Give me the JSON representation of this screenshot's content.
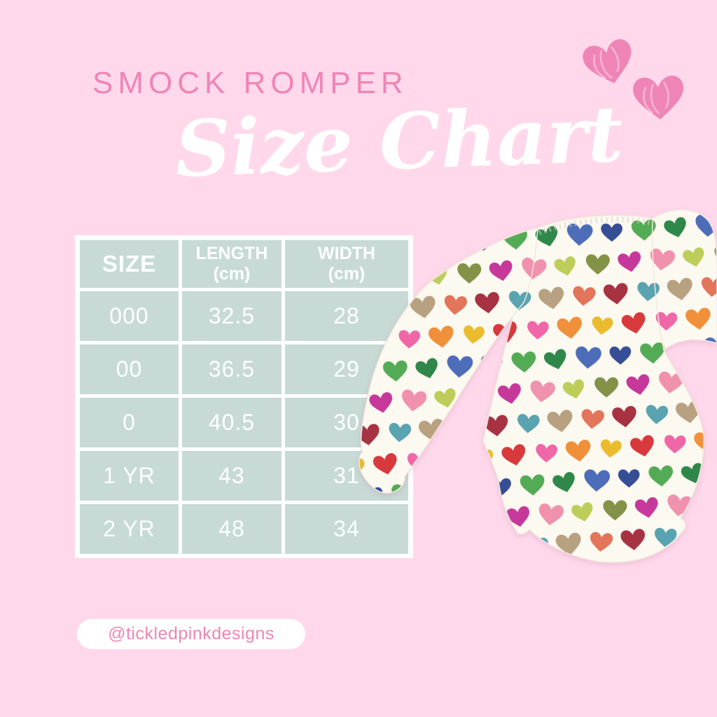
{
  "colors": {
    "background": "#ffd9eb",
    "accent_pink": "#ef85b6",
    "table_cell_teal": "#c7dad6",
    "table_text": "#ffffff",
    "fabric_base": "#fcf9f1"
  },
  "header": {
    "title": "SMOCK ROMPER",
    "subtitle": "Size Chart"
  },
  "decor": {
    "icons": [
      "heart-icon",
      "heart-icon"
    ]
  },
  "size_table": {
    "columns": [
      {
        "label": "SIZE",
        "unit": ""
      },
      {
        "label": "LENGTH",
        "unit": "(cm)"
      },
      {
        "label": "WIDTH",
        "unit": "(cm)"
      }
    ],
    "rows": [
      [
        "000",
        "32.5",
        "28"
      ],
      [
        "00",
        "36.5",
        "29"
      ],
      [
        "0",
        "40.5",
        "30"
      ],
      [
        "1 YR",
        "43",
        "31"
      ],
      [
        "2 YR",
        "48",
        "34"
      ]
    ]
  },
  "footer": {
    "handle": "@tickledpinkdesigns"
  },
  "romper": {
    "base": "#fcf9f1",
    "palette": [
      "#d42a2f",
      "#ef5ba1",
      "#f0872c",
      "#e8b71e",
      "#47a549",
      "#1f7f3c",
      "#3f62b5",
      "#27408f",
      "#c22a93",
      "#ef8aa8",
      "#b9c94e",
      "#7a8a3a",
      "#4d9cab",
      "#b39a78",
      "#e06a4f",
      "#a02335"
    ]
  },
  "chart_data": {
    "type": "table",
    "title": "SMOCK ROMPER Size Chart",
    "columns": [
      "SIZE",
      "LENGTH (cm)",
      "WIDTH (cm)"
    ],
    "rows": [
      [
        "000",
        32.5,
        28
      ],
      [
        "00",
        36.5,
        29
      ],
      [
        "0",
        40.5,
        30
      ],
      [
        "1 YR",
        43,
        31
      ],
      [
        "2 YR",
        48,
        34
      ]
    ]
  }
}
